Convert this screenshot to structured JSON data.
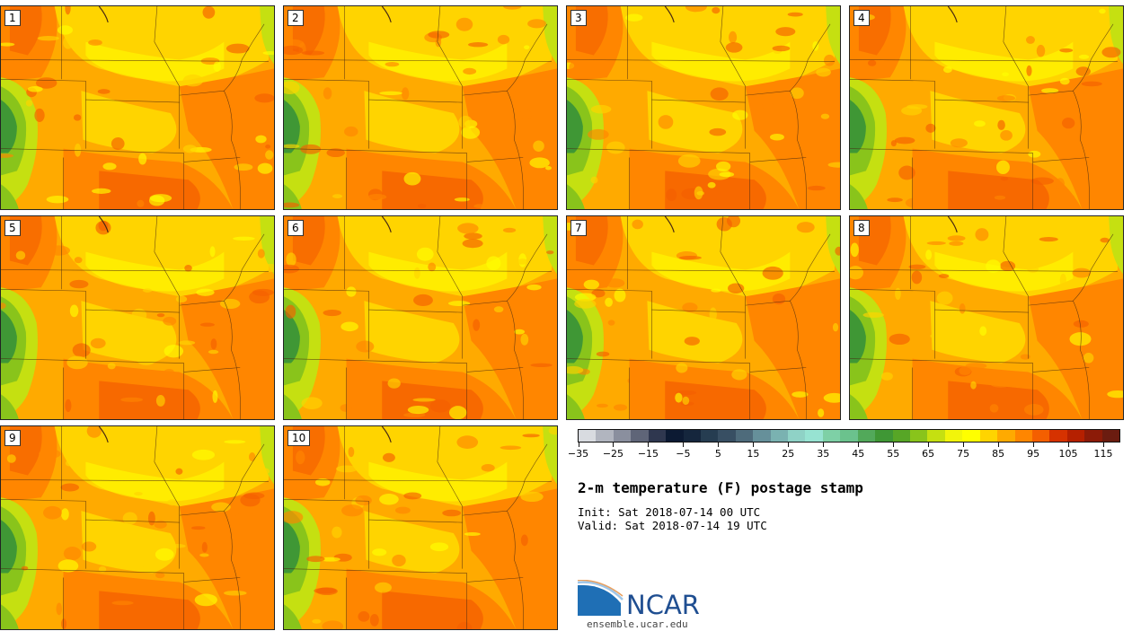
{
  "figure": {
    "title": "2-m temperature (F) postage stamp",
    "init": "Init: Sat 2018-07-14 00 UTC",
    "valid": "Valid: Sat 2018-07-14 19 UTC"
  },
  "members": [
    "1",
    "2",
    "3",
    "4",
    "5",
    "6",
    "7",
    "8",
    "9",
    "10"
  ],
  "colorbar": {
    "colors": [
      "#d8dbe0",
      "#b1b5bf",
      "#8a8f9e",
      "#5f6578",
      "#2f374f",
      "#0c1a33",
      "#15263d",
      "#263d51",
      "#384f63",
      "#4e6b7b",
      "#66909a",
      "#7ab2b1",
      "#8fd2c6",
      "#97e3d2",
      "#7ed0a6",
      "#6bc28d",
      "#52a95a",
      "#3f9735",
      "#57a626",
      "#89c41b",
      "#c5e011",
      "#f2f50a",
      "#ffff00",
      "#ffd400",
      "#ffaa00",
      "#ff8600",
      "#f45f00",
      "#d63200",
      "#b52000",
      "#8c1b08",
      "#6b1c10"
    ],
    "tick_labels": [
      "-35",
      "-25",
      "-15",
      "-5",
      "5",
      "15",
      "25",
      "35",
      "45",
      "55",
      "65",
      "75",
      "85",
      "95",
      "105",
      "115"
    ]
  },
  "map_colors": {
    "c75": "#ffff00",
    "c80": "#ffd400",
    "c85": "#ffaa00",
    "c90": "#ff8600",
    "c95": "#f45f00",
    "c70": "#c5e011",
    "c65": "#89c41b",
    "c60": "#3f9735",
    "c100": "#d63200"
  },
  "branding": {
    "logo": "NCAR",
    "url": "ensemble.ucar.edu"
  }
}
